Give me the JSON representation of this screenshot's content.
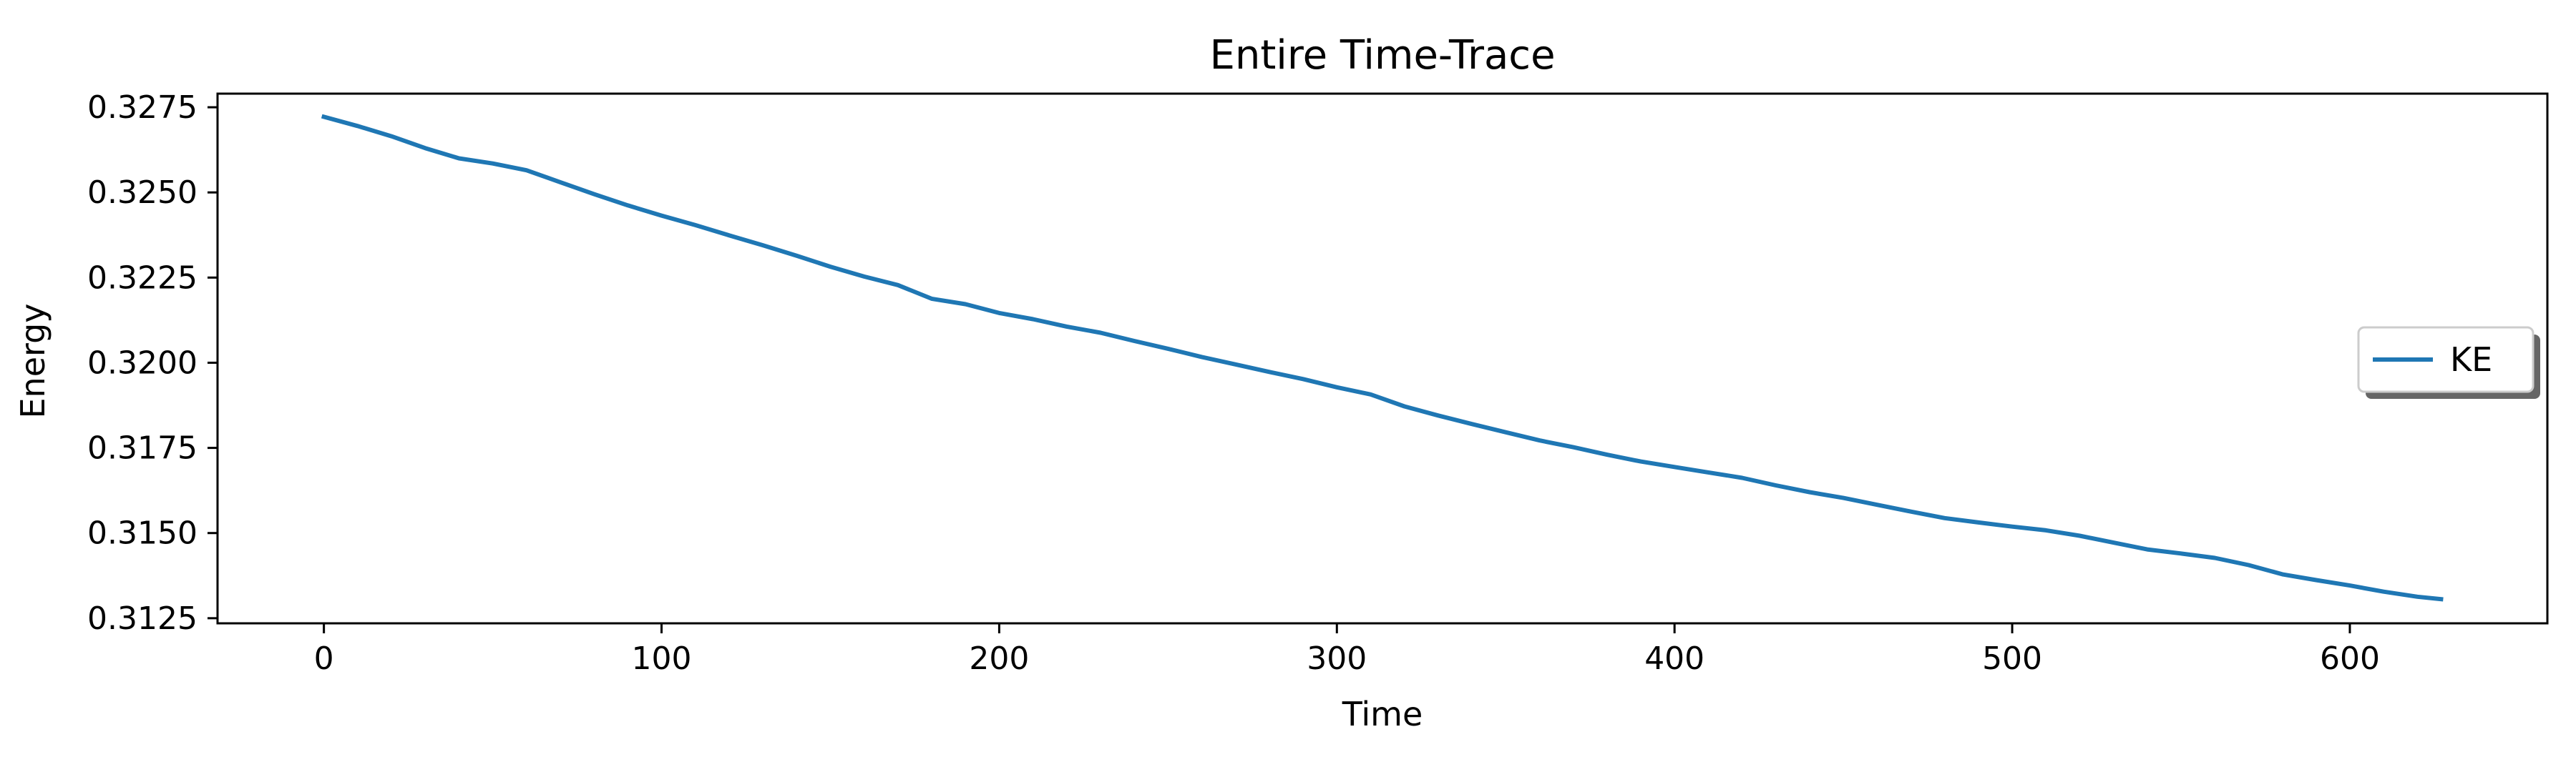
{
  "chart_data": {
    "type": "line",
    "title": "Entire Time-Trace",
    "xlabel": "Time",
    "ylabel": "Energy",
    "xlim": [
      -31.5,
      658.5
    ],
    "ylim": [
      0.31235,
      0.3279
    ],
    "xticks": [
      0,
      100,
      200,
      300,
      400,
      500,
      600
    ],
    "xtick_labels": [
      "0",
      "100",
      "200",
      "300",
      "400",
      "500",
      "600"
    ],
    "yticks": [
      0.3125,
      0.315,
      0.3175,
      0.32,
      0.3225,
      0.325,
      0.3275
    ],
    "ytick_labels": [
      "0.3125",
      "0.3150",
      "0.3175",
      "0.3200",
      "0.3225",
      "0.3250",
      "0.3275"
    ],
    "grid": false,
    "legend": {
      "position": "center-right",
      "entries": [
        "KE"
      ]
    },
    "series": [
      {
        "name": "KE",
        "color": "#1f77b4",
        "x": [
          0,
          10,
          20,
          30,
          40,
          50,
          60,
          70,
          80,
          90,
          100,
          110,
          120,
          130,
          140,
          150,
          160,
          170,
          180,
          190,
          200,
          210,
          220,
          230,
          240,
          250,
          260,
          270,
          280,
          290,
          300,
          310,
          320,
          330,
          340,
          350,
          360,
          370,
          380,
          390,
          400,
          410,
          420,
          430,
          440,
          450,
          460,
          470,
          480,
          490,
          500,
          510,
          520,
          530,
          540,
          550,
          560,
          570,
          580,
          590,
          600,
          610,
          620,
          627
        ],
        "values": [
          0.32722,
          0.32695,
          0.32665,
          0.3263,
          0.326,
          0.32585,
          0.32565,
          0.3253,
          0.32495,
          0.32462,
          0.32432,
          0.32404,
          0.32374,
          0.32345,
          0.32314,
          0.32282,
          0.32253,
          0.32228,
          0.32188,
          0.32172,
          0.32146,
          0.32128,
          0.32106,
          0.32088,
          0.32064,
          0.32041,
          0.32017,
          0.31995,
          0.31973,
          0.31952,
          0.31928,
          0.31907,
          0.31872,
          0.31845,
          0.3182,
          0.31796,
          0.31772,
          0.31752,
          0.3173,
          0.3171,
          0.31694,
          0.31678,
          0.31662,
          0.3164,
          0.3162,
          0.31603,
          0.31583,
          0.31563,
          0.31544,
          0.31531,
          0.31519,
          0.31508,
          0.31492,
          0.31472,
          0.31452,
          0.3144,
          0.31427,
          0.31406,
          0.31379,
          0.31362,
          0.31346,
          0.31328,
          0.31313,
          0.31306
        ]
      }
    ]
  }
}
